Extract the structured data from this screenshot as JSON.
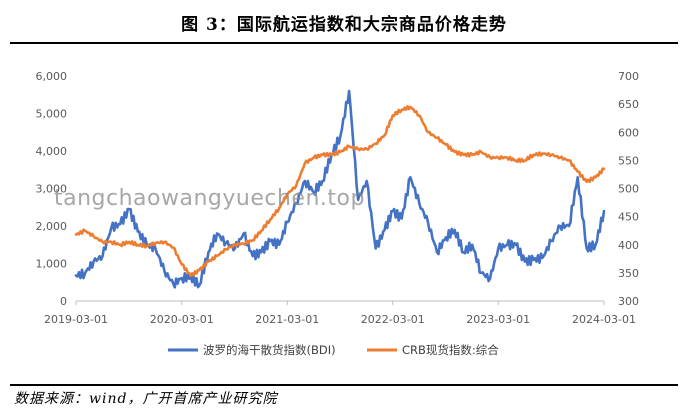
{
  "title": "图 3：国际航运指数和大宗商品价格走势",
  "source": "数据来源：wind，广开首席产业研究院",
  "watermark": "tangchaowangyuechen.top",
  "chart_data": {
    "type": "line",
    "title": "图 3：国际航运指数和大宗商品价格走势",
    "x_ticks": [
      "2019-03-01",
      "2020-03-01",
      "2021-03-01",
      "2022-03-01",
      "2023-03-01",
      "2024-03-01"
    ],
    "x_range": [
      "2019-03-01",
      "2024-03-01"
    ],
    "y_left": {
      "min": 0,
      "max": 6000,
      "ticks": [
        "0",
        "1,000",
        "2,000",
        "3,000",
        "4,000",
        "5,000",
        "6,000"
      ]
    },
    "y_right": {
      "min": 300,
      "max": 700,
      "ticks": [
        "300",
        "350",
        "400",
        "450",
        "500",
        "550",
        "600",
        "650",
        "700"
      ]
    },
    "legend": "bottom",
    "grid": false,
    "series": [
      {
        "name": "波罗的海干散货指数(BDI)",
        "axis": "left",
        "color": "#4472C4",
        "points": [
          [
            "2019-03-01",
            680
          ],
          [
            "2019-04-01",
            740
          ],
          [
            "2019-05-01",
            1050
          ],
          [
            "2019-06-01",
            1200
          ],
          [
            "2019-07-01",
            1950
          ],
          [
            "2019-08-01",
            2050
          ],
          [
            "2019-09-01",
            2450
          ],
          [
            "2019-10-01",
            1850
          ],
          [
            "2019-11-01",
            1500
          ],
          [
            "2019-12-01",
            1400
          ],
          [
            "2020-01-01",
            800
          ],
          [
            "2020-02-01",
            450
          ],
          [
            "2020-03-01",
            610
          ],
          [
            "2020-04-01",
            650
          ],
          [
            "2020-05-01",
            420
          ],
          [
            "2020-06-01",
            1300
          ],
          [
            "2020-07-01",
            1800
          ],
          [
            "2020-08-01",
            1550
          ],
          [
            "2020-09-01",
            1400
          ],
          [
            "2020-10-01",
            1800
          ],
          [
            "2020-11-01",
            1200
          ],
          [
            "2020-12-01",
            1300
          ],
          [
            "2021-01-01",
            1600
          ],
          [
            "2021-02-01",
            1500
          ],
          [
            "2021-03-01",
            2100
          ],
          [
            "2021-04-01",
            2600
          ],
          [
            "2021-05-01",
            3200
          ],
          [
            "2021-06-01",
            2900
          ],
          [
            "2021-07-01",
            3200
          ],
          [
            "2021-08-01",
            3900
          ],
          [
            "2021-09-01",
            4400
          ],
          [
            "2021-10-01",
            5600
          ],
          [
            "2021-11-01",
            2700
          ],
          [
            "2021-12-01",
            3200
          ],
          [
            "2022-01-01",
            1400
          ],
          [
            "2022-02-01",
            1900
          ],
          [
            "2022-03-01",
            2400
          ],
          [
            "2022-04-01",
            2200
          ],
          [
            "2022-05-01",
            3300
          ],
          [
            "2022-06-01",
            2600
          ],
          [
            "2022-07-01",
            2100
          ],
          [
            "2022-08-01",
            1300
          ],
          [
            "2022-09-01",
            1700
          ],
          [
            "2022-10-01",
            1900
          ],
          [
            "2022-11-01",
            1300
          ],
          [
            "2022-12-01",
            1500
          ],
          [
            "2023-01-01",
            750
          ],
          [
            "2023-02-01",
            600
          ],
          [
            "2023-03-01",
            1400
          ],
          [
            "2023-04-01",
            1500
          ],
          [
            "2023-05-01",
            1500
          ],
          [
            "2023-06-01",
            1050
          ],
          [
            "2023-07-01",
            1100
          ],
          [
            "2023-08-01",
            1150
          ],
          [
            "2023-09-01",
            1600
          ],
          [
            "2023-10-01",
            2000
          ],
          [
            "2023-11-01",
            2000
          ],
          [
            "2023-12-01",
            3300
          ],
          [
            "2024-01-01",
            1400
          ],
          [
            "2024-02-01",
            1500
          ],
          [
            "2024-03-01",
            2400
          ]
        ]
      },
      {
        "name": "CRB现货指数:综合",
        "axis": "right",
        "color": "#ED7D31",
        "points": [
          [
            "2019-03-01",
            418
          ],
          [
            "2019-04-01",
            425
          ],
          [
            "2019-05-01",
            415
          ],
          [
            "2019-06-01",
            405
          ],
          [
            "2019-07-01",
            405
          ],
          [
            "2019-08-01",
            400
          ],
          [
            "2019-09-01",
            405
          ],
          [
            "2019-10-01",
            400
          ],
          [
            "2019-11-01",
            398
          ],
          [
            "2019-12-01",
            403
          ],
          [
            "2020-01-01",
            405
          ],
          [
            "2020-02-01",
            395
          ],
          [
            "2020-03-01",
            365
          ],
          [
            "2020-04-01",
            345
          ],
          [
            "2020-05-01",
            355
          ],
          [
            "2020-06-01",
            370
          ],
          [
            "2020-07-01",
            380
          ],
          [
            "2020-08-01",
            392
          ],
          [
            "2020-09-01",
            400
          ],
          [
            "2020-10-01",
            402
          ],
          [
            "2020-11-01",
            408
          ],
          [
            "2020-12-01",
            425
          ],
          [
            "2021-01-01",
            445
          ],
          [
            "2021-02-01",
            465
          ],
          [
            "2021-03-01",
            490
          ],
          [
            "2021-04-01",
            505
          ],
          [
            "2021-05-01",
            545
          ],
          [
            "2021-06-01",
            555
          ],
          [
            "2021-07-01",
            560
          ],
          [
            "2021-08-01",
            560
          ],
          [
            "2021-09-01",
            565
          ],
          [
            "2021-10-01",
            575
          ],
          [
            "2021-11-01",
            570
          ],
          [
            "2021-12-01",
            570
          ],
          [
            "2022-01-01",
            580
          ],
          [
            "2022-02-01",
            595
          ],
          [
            "2022-03-01",
            630
          ],
          [
            "2022-04-01",
            640
          ],
          [
            "2022-05-01",
            645
          ],
          [
            "2022-06-01",
            630
          ],
          [
            "2022-07-01",
            600
          ],
          [
            "2022-08-01",
            590
          ],
          [
            "2022-09-01",
            578
          ],
          [
            "2022-10-01",
            565
          ],
          [
            "2022-11-01",
            560
          ],
          [
            "2022-12-01",
            560
          ],
          [
            "2023-01-01",
            565
          ],
          [
            "2023-02-01",
            555
          ],
          [
            "2023-03-01",
            555
          ],
          [
            "2023-04-01",
            555
          ],
          [
            "2023-05-01",
            550
          ],
          [
            "2023-06-01",
            550
          ],
          [
            "2023-07-01",
            560
          ],
          [
            "2023-08-01",
            562
          ],
          [
            "2023-09-01",
            560
          ],
          [
            "2023-10-01",
            555
          ],
          [
            "2023-11-01",
            550
          ],
          [
            "2023-12-01",
            530
          ],
          [
            "2024-01-01",
            512
          ],
          [
            "2024-02-01",
            520
          ],
          [
            "2024-03-01",
            535
          ]
        ]
      }
    ]
  }
}
